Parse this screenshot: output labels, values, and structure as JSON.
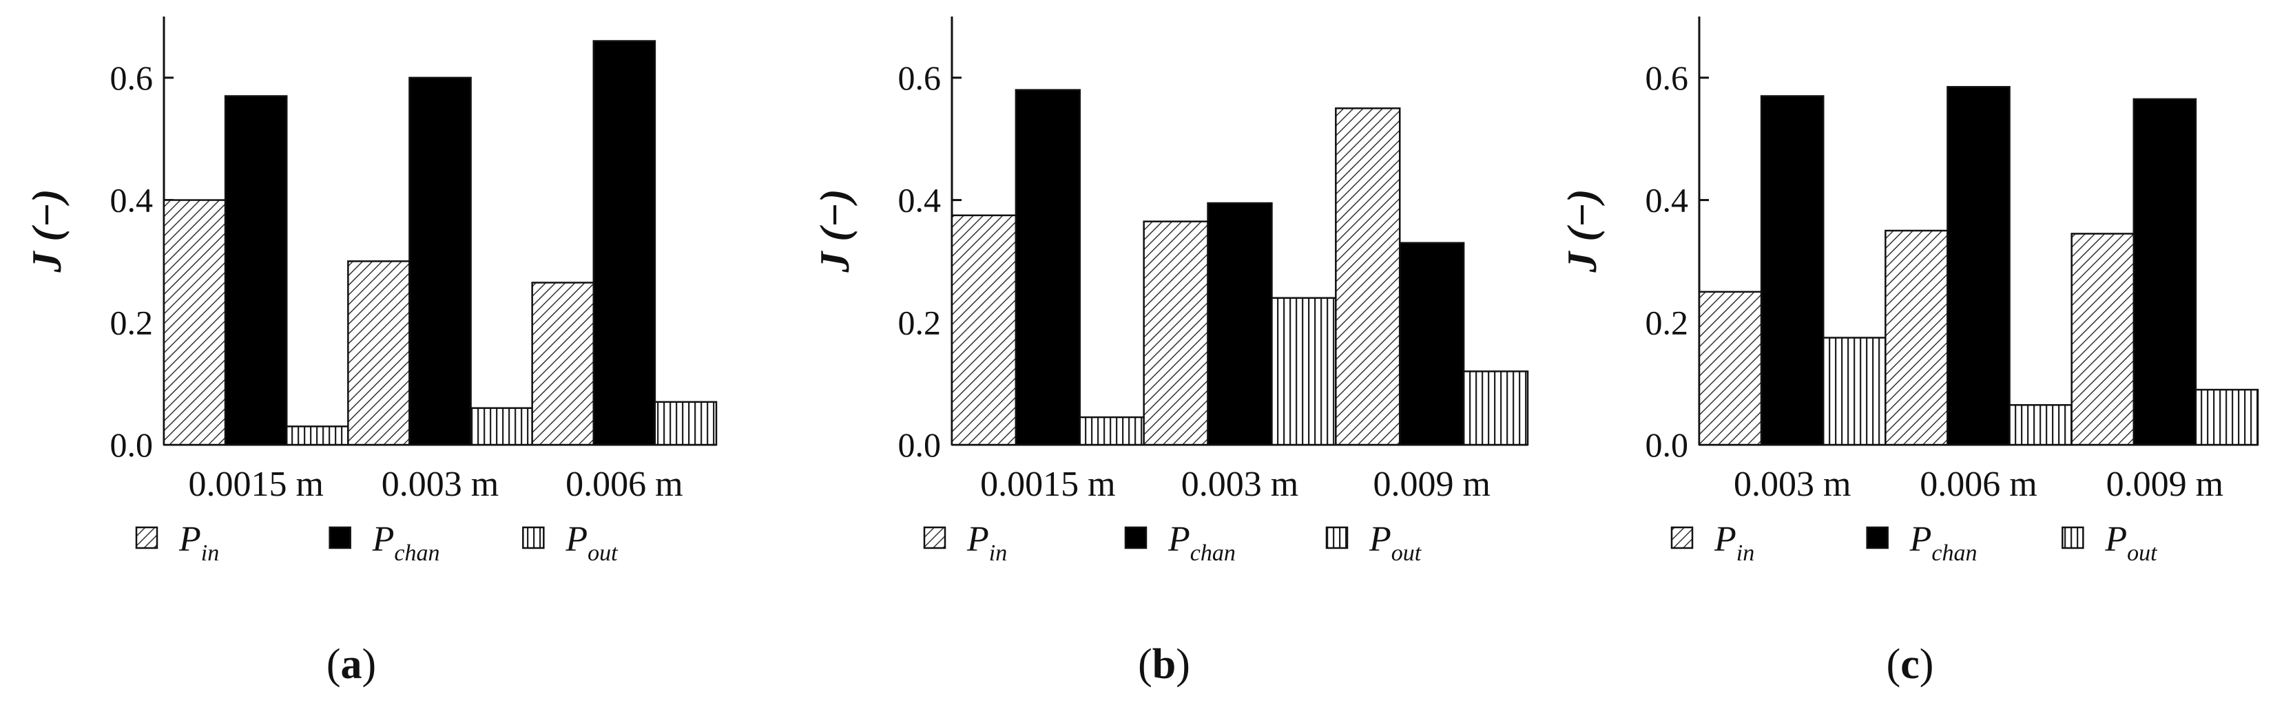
{
  "chart_data": [
    {
      "type": "bar",
      "panel_label": "a",
      "categories": [
        "0.0015 m",
        "0.003 m",
        "0.006 m"
      ],
      "series": [
        {
          "name": "P",
          "subscript": "in",
          "pattern": "diagonal-hatch",
          "values": [
            0.4,
            0.3,
            0.265
          ]
        },
        {
          "name": "P",
          "subscript": "chan",
          "pattern": "solid-black",
          "values": [
            0.57,
            0.6,
            0.66
          ]
        },
        {
          "name": "P",
          "subscript": "out",
          "pattern": "vertical-hatch",
          "values": [
            0.03,
            0.06,
            0.07
          ]
        }
      ],
      "ylabel": "J (−)",
      "ylim": [
        0,
        0.7
      ],
      "yticks": [
        "0.0",
        "0.2",
        "0.4",
        "0.6"
      ],
      "legend_position": "bottom"
    },
    {
      "type": "bar",
      "panel_label": "b",
      "categories": [
        "0.0015 m",
        "0.003 m",
        "0.009 m"
      ],
      "series": [
        {
          "name": "P",
          "subscript": "in",
          "pattern": "diagonal-hatch",
          "values": [
            0.375,
            0.365,
            0.55
          ]
        },
        {
          "name": "P",
          "subscript": "chan",
          "pattern": "solid-black",
          "values": [
            0.58,
            0.395,
            0.33
          ]
        },
        {
          "name": "P",
          "subscript": "out",
          "pattern": "vertical-hatch",
          "values": [
            0.045,
            0.24,
            0.12
          ]
        }
      ],
      "ylabel": "J (−)",
      "ylim": [
        0,
        0.7
      ],
      "yticks": [
        "0.0",
        "0.2",
        "0.4",
        "0.6"
      ],
      "legend_position": "bottom"
    },
    {
      "type": "bar",
      "panel_label": "c",
      "categories": [
        "0.003 m",
        "0.006 m",
        "0.009 m"
      ],
      "series": [
        {
          "name": "P",
          "subscript": "in",
          "pattern": "diagonal-hatch",
          "values": [
            0.25,
            0.35,
            0.345
          ]
        },
        {
          "name": "P",
          "subscript": "chan",
          "pattern": "solid-black",
          "values": [
            0.57,
            0.585,
            0.565
          ]
        },
        {
          "name": "P",
          "subscript": "out",
          "pattern": "vertical-hatch",
          "values": [
            0.175,
            0.065,
            0.09
          ]
        }
      ],
      "ylabel": "J (−)",
      "ylim": [
        0,
        0.7
      ],
      "yticks": [
        "0.0",
        "0.2",
        "0.4",
        "0.6"
      ],
      "legend_position": "bottom"
    }
  ]
}
